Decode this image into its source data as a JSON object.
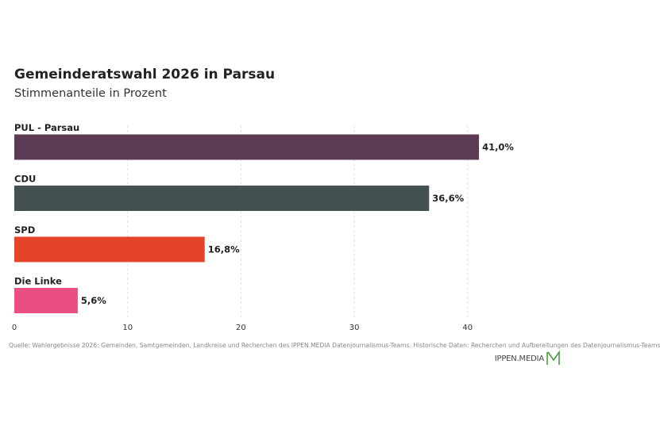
{
  "header": {
    "title": "Gemeinderatswahl 2026 in Parsau",
    "subtitle": "Stimmenanteile in Prozent"
  },
  "chart_data": {
    "type": "bar",
    "orientation": "horizontal",
    "categories": [
      "PUL - Parsau",
      "CDU",
      "SPD",
      "Die Linke"
    ],
    "values": [
      41.0,
      36.6,
      16.8,
      5.6
    ],
    "value_labels": [
      "41,0%",
      "36,6%",
      "16,8%",
      "5,6%"
    ],
    "colors": [
      "#5b3b53",
      "#445052",
      "#e5432a",
      "#e94f83"
    ],
    "xticks": [
      0,
      10,
      20,
      30,
      40
    ],
    "xlim": [
      0,
      50
    ],
    "grid": true,
    "legend": "none"
  },
  "footer": {
    "source": "Quelle: Wahlergebnisse 2026: Gemeinden, Samtgemeinden, Landkreise und Recherchen des IPPEN.MEDIA Datenjournalismus-Teams. Historische Daten: Recherchen und Aufbereitungen des Datenjournalismus-Teams",
    "logo_text": "IPPEN.MEDIA",
    "logo_icon": "m-logo-icon",
    "logo_color": "#4a9e3f"
  }
}
